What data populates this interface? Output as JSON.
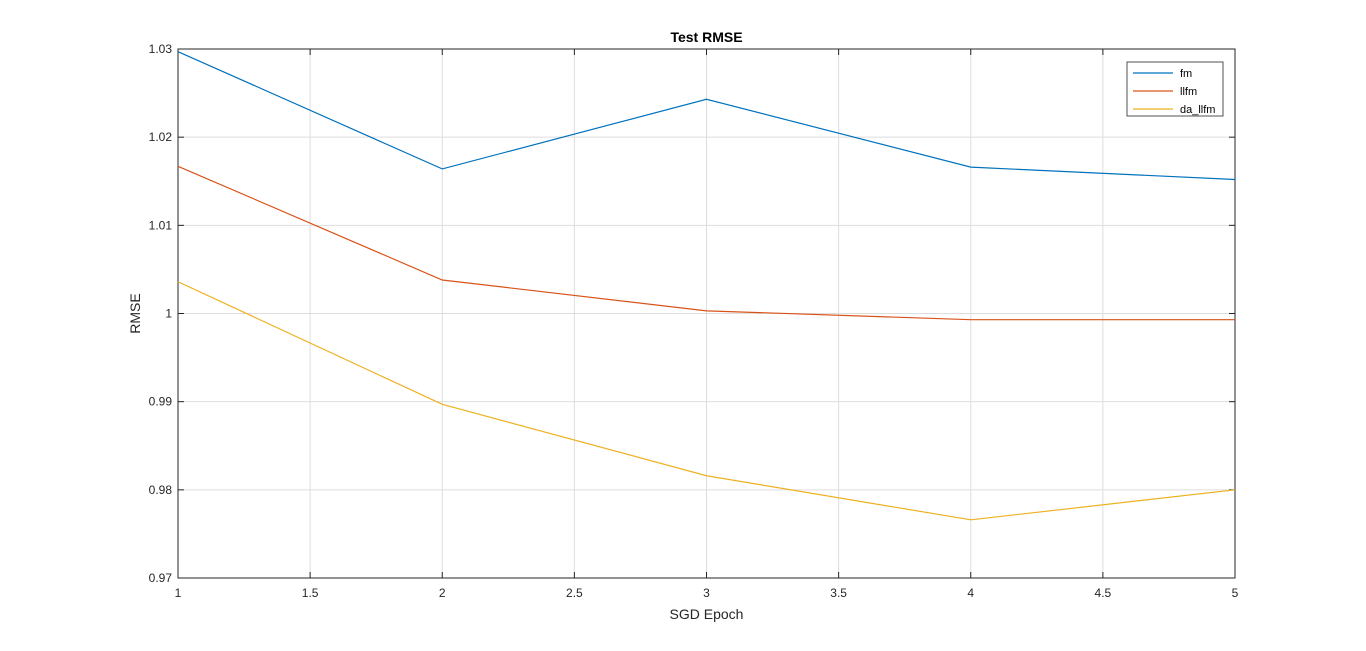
{
  "chart_data": {
    "type": "line",
    "title": "Test RMSE",
    "xlabel": "SGD Epoch",
    "ylabel": "RMSE",
    "xlim": [
      1,
      5
    ],
    "ylim": [
      0.97,
      1.03
    ],
    "x": [
      1,
      2,
      3,
      4,
      5
    ],
    "xticks": [
      "1",
      "1.5",
      "2",
      "2.5",
      "3",
      "3.5",
      "4",
      "4.5",
      "5"
    ],
    "yticks": [
      "0.97",
      "0.98",
      "0.99",
      "1",
      "1.01",
      "1.02",
      "1.03"
    ],
    "grid": true,
    "legend_position": "top-right",
    "series": [
      {
        "name": "fm",
        "color": "#0072BD",
        "values": [
          1.0297,
          1.0164,
          1.0243,
          1.0166,
          1.0152
        ]
      },
      {
        "name": "llfm",
        "color": "#D95319",
        "values": [
          1.0167,
          1.0038,
          1.0003,
          0.9993,
          0.9993
        ]
      },
      {
        "name": "da_llfm",
        "color": "#EDB120",
        "values": [
          1.0036,
          0.9897,
          0.9816,
          0.9766,
          0.98
        ]
      }
    ]
  }
}
